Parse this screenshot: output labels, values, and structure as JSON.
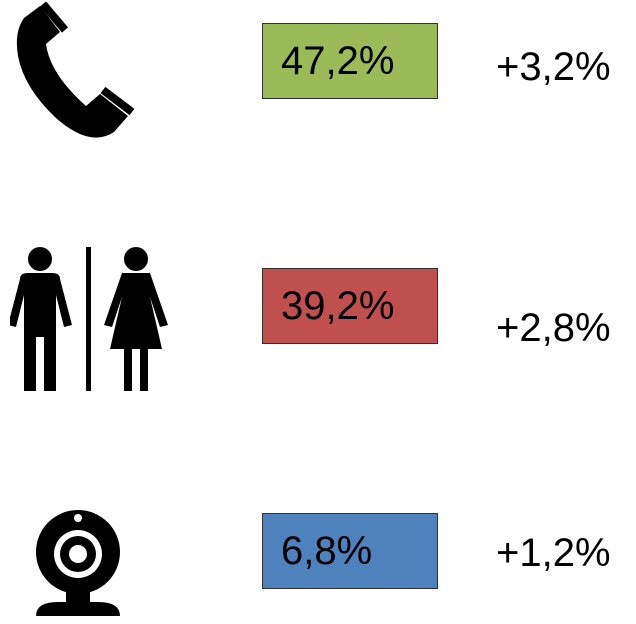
{
  "rows": [
    {
      "share": "47,2%",
      "change": "+3,2%",
      "color": "#9bbb59"
    },
    {
      "share": "39,2%",
      "change": "+2,8%",
      "color": "#c0504d"
    },
    {
      "share": "6,8%",
      "change": "+1,2%",
      "color": "#4f81bd"
    }
  ]
}
